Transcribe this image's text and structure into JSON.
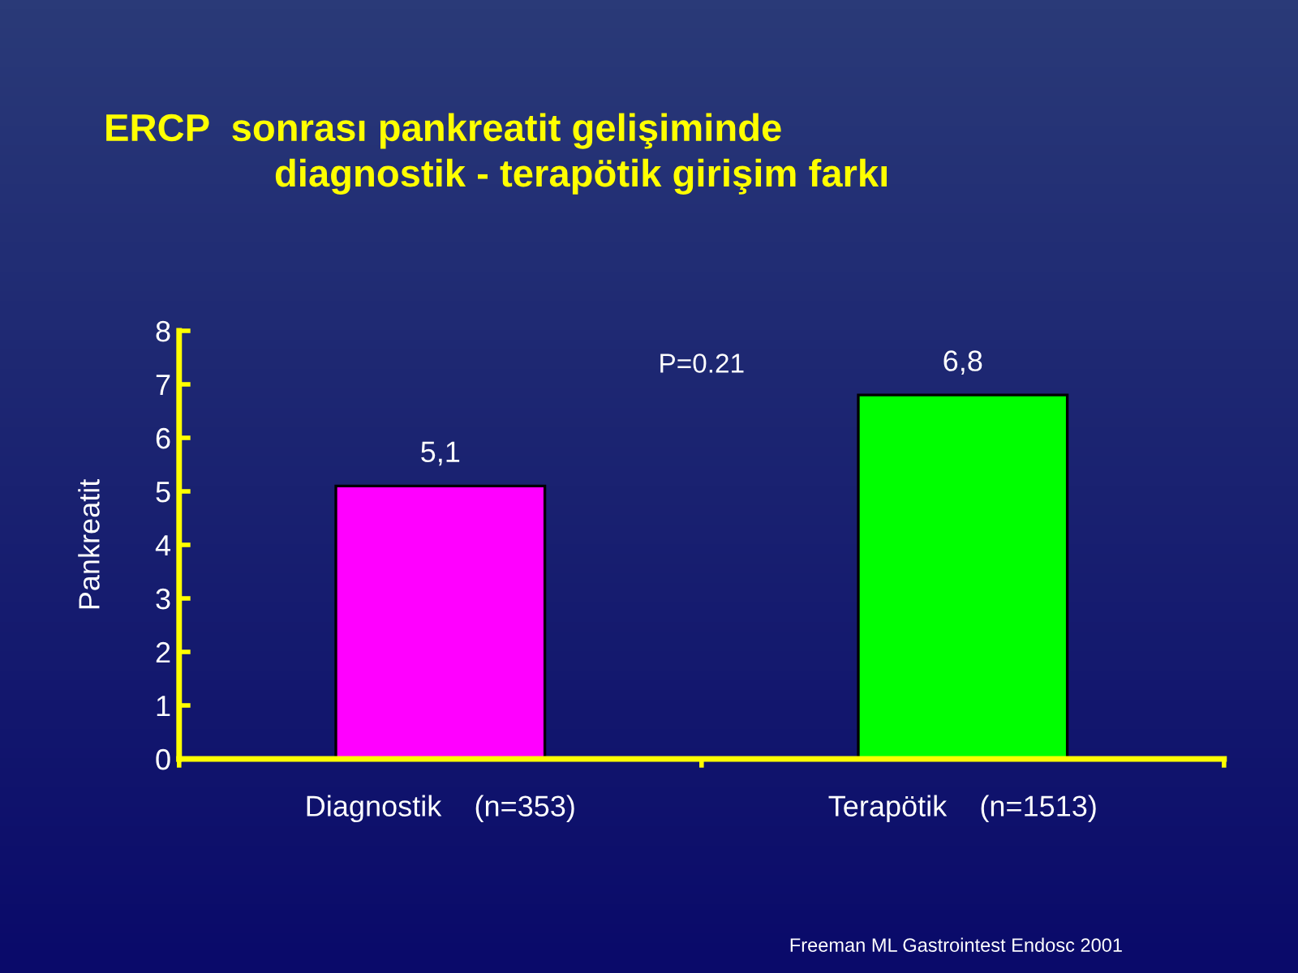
{
  "chart_data": {
    "type": "bar",
    "title": "ERCP  sonrası pankreatit gelişiminde\n                diagnostik - terapötik girişim farkı",
    "ylabel": "Pankreatit",
    "categories": [
      "Diagnostik    (n=353)",
      "Terapötik    (n=1513)"
    ],
    "values": [
      5.1,
      6.8
    ],
    "colors": [
      "#ff00ff",
      "#00ff00"
    ],
    "value_labels": [
      "5,1",
      "6,8"
    ],
    "ylim": [
      0,
      8
    ],
    "yticks": [
      0,
      1,
      2,
      3,
      4,
      5,
      6,
      7,
      8
    ],
    "grid": false,
    "legend": false,
    "annotations": [
      "P=0.21",
      "Freeman ML Gastrointest Endosc 2001"
    ]
  }
}
